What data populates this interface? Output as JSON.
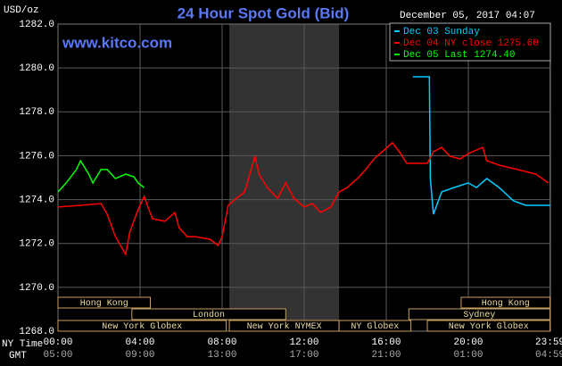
{
  "chart_data": {
    "type": "line",
    "title": "24 Hour Spot Gold (Bid)",
    "site": "www.kitco.com",
    "y_unit": "USD/oz",
    "timestamp": "December 05, 2017 04:07",
    "x_row_labels": [
      "NY Time",
      "GMT"
    ],
    "xlim": [
      0,
      24
    ],
    "ylim": [
      1268,
      1282
    ],
    "grid": true,
    "shade_x": [
      8.35,
      13.7
    ],
    "xticks": [
      {
        "value": 0,
        "label": "00:00"
      },
      {
        "value": 4,
        "label": "04:00"
      },
      {
        "value": 8,
        "label": "08:00"
      },
      {
        "value": 12,
        "label": "12:00"
      },
      {
        "value": 16,
        "label": "16:00"
      },
      {
        "value": 20,
        "label": "20:00"
      },
      {
        "value": 23.98,
        "label": "23:59"
      }
    ],
    "x_gmt_labels": [
      "05:00",
      "09:00",
      "13:00",
      "17:00",
      "21:00",
      "01:00",
      "04:59"
    ],
    "yticks": [
      {
        "value": 1268,
        "label": "1268.0"
      },
      {
        "value": 1270,
        "label": "1270.0"
      },
      {
        "value": 1272,
        "label": "1272.0"
      },
      {
        "value": 1274,
        "label": "1274.0"
      },
      {
        "value": 1276,
        "label": "1276.0"
      },
      {
        "value": 1278,
        "label": "1278.0"
      },
      {
        "value": 1280,
        "label": "1280.0"
      },
      {
        "value": 1282,
        "label": "1282.0"
      }
    ],
    "series": [
      {
        "name": "Dec 03 Sunday",
        "color": "#00ccff",
        "x": [
          17.3,
          18.1,
          18.15,
          18.3,
          18.7,
          19.3,
          20.0,
          20.4,
          20.9,
          21.5,
          22.2,
          22.8,
          24.0
        ],
        "values": [
          1279.6,
          1279.6,
          1274.96,
          1273.33,
          1274.35,
          1274.55,
          1274.76,
          1274.55,
          1274.96,
          1274.55,
          1273.94,
          1273.74,
          1273.74
        ]
      },
      {
        "name": "Dec 04 NY close 1275.60",
        "color": "#ff0000",
        "x": [
          0,
          1.1,
          2.1,
          2.4,
          2.8,
          3.3,
          3.5,
          3.9,
          4.2,
          4.6,
          5.2,
          5.7,
          5.9,
          6.3,
          6.7,
          7.4,
          7.8,
          8.0,
          8.3,
          8.7,
          9.1,
          9.6,
          9.8,
          10.2,
          10.7,
          11.1,
          11.5,
          12.0,
          12.4,
          12.8,
          13.3,
          13.7,
          14.1,
          14.6,
          15.0,
          15.4,
          15.9,
          16.3,
          16.7,
          17.0,
          17.6,
          18.0,
          18.3,
          18.7,
          19.1,
          19.6,
          20.0,
          20.7,
          20.9,
          21.5,
          22.4,
          23.3,
          23.9
        ],
        "values": [
          1273.66,
          1273.74,
          1273.82,
          1273.33,
          1272.31,
          1271.5,
          1272.52,
          1273.53,
          1274.14,
          1273.13,
          1273.01,
          1273.41,
          1272.72,
          1272.31,
          1272.31,
          1272.19,
          1271.91,
          1272.31,
          1273.74,
          1274.06,
          1274.35,
          1275.98,
          1275.16,
          1274.55,
          1274.06,
          1274.76,
          1274.06,
          1273.66,
          1273.82,
          1273.41,
          1273.66,
          1274.35,
          1274.55,
          1274.96,
          1275.37,
          1275.85,
          1276.26,
          1276.59,
          1276.1,
          1275.65,
          1275.65,
          1275.65,
          1276.18,
          1276.38,
          1275.98,
          1275.85,
          1276.1,
          1276.38,
          1275.77,
          1275.57,
          1275.37,
          1275.16,
          1274.76
        ]
      },
      {
        "name": "Dec 05 Last 1274.40",
        "color": "#00ff00",
        "x": [
          0,
          0.4,
          0.9,
          1.1,
          1.5,
          1.7,
          2.1,
          2.4,
          2.8,
          3.3,
          3.7,
          3.9,
          4.2
        ],
        "values": [
          1274.35,
          1274.76,
          1275.37,
          1275.77,
          1275.16,
          1274.76,
          1275.37,
          1275.37,
          1274.96,
          1275.16,
          1275.04,
          1274.76,
          1274.55
        ]
      }
    ],
    "sessions": [
      [
        {
          "label": "Hong Kong",
          "x": [
            0,
            4.5
          ]
        },
        {
          "label": "Hong Kong",
          "x": [
            19.65,
            23.98
          ]
        }
      ],
      [
        {
          "label": "London",
          "x": [
            3.6,
            11.1
          ]
        },
        {
          "label": "Sydney",
          "x": [
            17.1,
            23.98
          ]
        }
      ],
      [
        {
          "label": "New York Globex",
          "x": [
            0,
            8.2
          ]
        },
        {
          "label": "New York NYMEX",
          "x": [
            8.35,
            13.7
          ]
        },
        {
          "label": "NY Globex",
          "x": [
            13.7,
            17.2
          ]
        },
        {
          "label": "New York Globex",
          "x": [
            18.0,
            23.98
          ]
        }
      ]
    ]
  }
}
